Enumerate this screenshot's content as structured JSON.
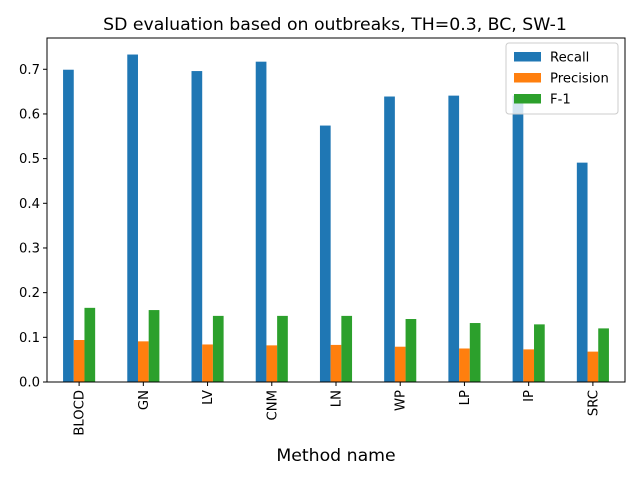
{
  "chart_data": {
    "type": "bar",
    "title": "SD evaluation based on outbreaks, TH=0.3, BC, SW-1",
    "xlabel": "Method name",
    "ylabel": "",
    "categories": [
      "BLOCD",
      "GN",
      "LV",
      "CNM",
      "LN",
      "WP",
      "LP",
      "IP",
      "SRC"
    ],
    "series": [
      {
        "name": "Recall",
        "color": "#1f77b4",
        "values": [
          0.699,
          0.733,
          0.696,
          0.717,
          0.574,
          0.639,
          0.641,
          0.641,
          0.491
        ]
      },
      {
        "name": "Precision",
        "color": "#ff7f0e",
        "values": [
          0.094,
          0.091,
          0.084,
          0.082,
          0.083,
          0.079,
          0.075,
          0.073,
          0.068
        ]
      },
      {
        "name": "F-1",
        "color": "#2ca02c",
        "values": [
          0.166,
          0.161,
          0.148,
          0.148,
          0.148,
          0.141,
          0.132,
          0.129,
          0.12
        ]
      }
    ],
    "ylim": [
      0,
      0.77
    ],
    "yticks": [
      0.0,
      0.1,
      0.2,
      0.3,
      0.4,
      0.5,
      0.6,
      0.7
    ],
    "ytick_labels": [
      "0.0",
      "0.1",
      "0.2",
      "0.3",
      "0.4",
      "0.5",
      "0.6",
      "0.7"
    ],
    "grid": false,
    "legend_position": "top-right"
  }
}
